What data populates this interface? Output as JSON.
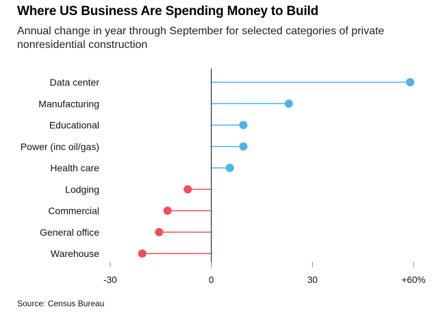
{
  "title": "Where US Business Are Spending Money to Build",
  "subtitle": "Annual change in year through September for selected categories of private nonresidential construction",
  "source": "Source: Census Bureau",
  "colors": {
    "positive": "#4db3ea",
    "negative": "#f24e5a",
    "axis": "#000000",
    "ticks": "#888888"
  },
  "chart_data": {
    "type": "lollipop",
    "categories": [
      "Data center",
      "Manufacturing",
      "Educational",
      "Power (inc oil/gas)",
      "Health care",
      "Lodging",
      "Commercial",
      "General office",
      "Warehouse"
    ],
    "values": [
      59,
      23,
      9.5,
      9.5,
      5.5,
      -7,
      -13,
      -15.5,
      -20.5
    ],
    "xlim": [
      -30,
      60
    ],
    "xticks": [
      -30,
      0,
      30,
      60
    ],
    "xtick_labels": [
      "-30",
      "0",
      "30",
      "+60%"
    ],
    "xlabel": "",
    "ylabel": "",
    "grid": false,
    "legend": null
  }
}
